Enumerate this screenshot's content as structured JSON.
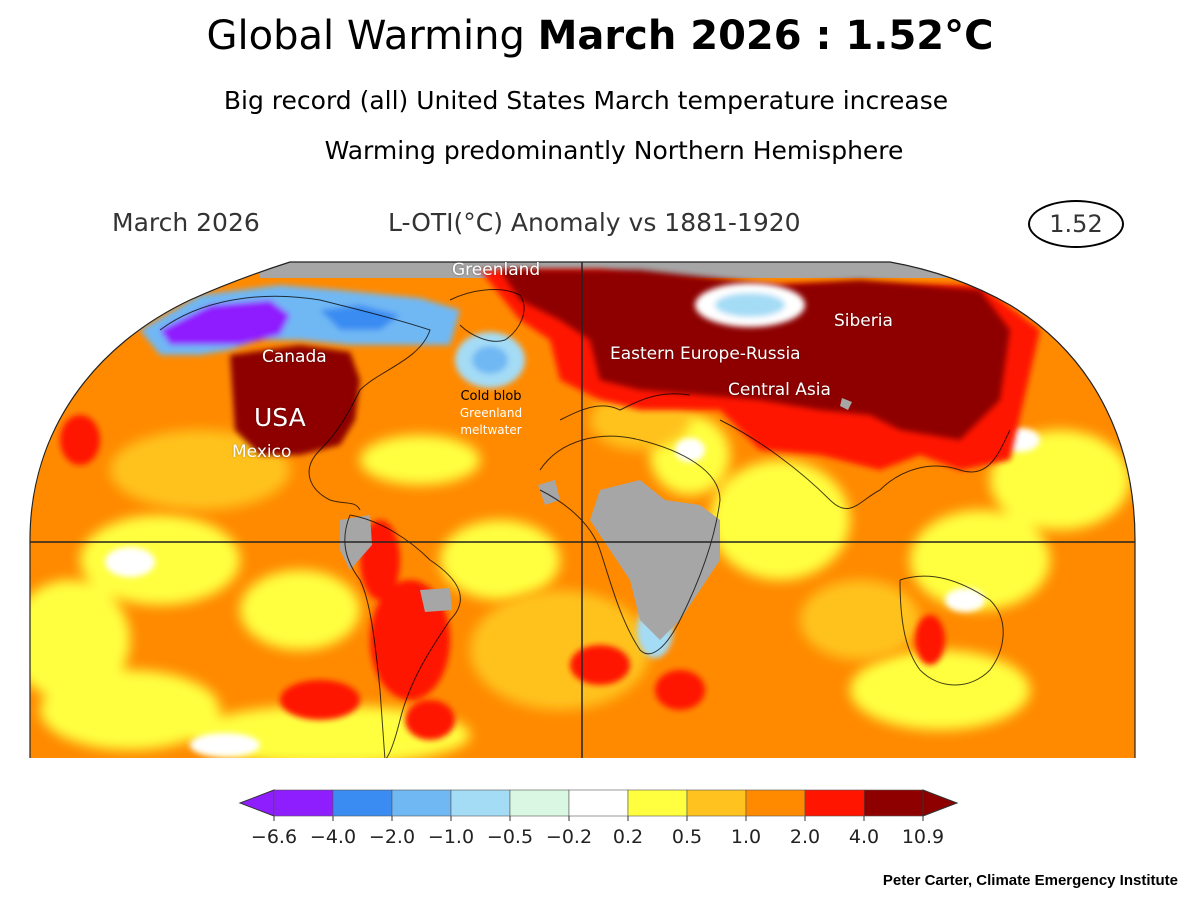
{
  "title": {
    "prefix": "Global Warming",
    "bold": "March 2026 : 1.52°C"
  },
  "subtitles": [
    "Big record (all) United States March temperature increase",
    "Warming predominantly Northern Hemisphere"
  ],
  "map_header": {
    "period": "March 2026",
    "quantity": "L-OTI(°C) Anomaly vs 1881-1920",
    "global_value": "1.52"
  },
  "map_labels": {
    "greenland": "Greenland",
    "canada": "Canada",
    "usa": "USA",
    "mexico": "Mexico",
    "cold_blob": [
      "Cold blob",
      "Greenland",
      "meltwater"
    ],
    "eastern_europe_russia": "Eastern Europe-Russia",
    "siberia": "Siberia",
    "central_asia": "Central Asia"
  },
  "colorbar": {
    "ticks": [
      "−6.6",
      "−4.0",
      "−2.0",
      "−1.0",
      "−0.5",
      "−0.2",
      "0.2",
      "0.5",
      "1.0",
      "2.0",
      "4.0",
      "10.9"
    ],
    "colors": [
      "#8f1eff",
      "#3a8cf2",
      "#70b8f4",
      "#a4dcf6",
      "#d9f7e3",
      "#ffffff",
      "#ffff40",
      "#ffc21e",
      "#ff8a00",
      "#ff1500",
      "#8e0000"
    ],
    "no_data_color": "#a6a6a6"
  },
  "credit": "Peter Carter, Climate Emergency Institute"
}
